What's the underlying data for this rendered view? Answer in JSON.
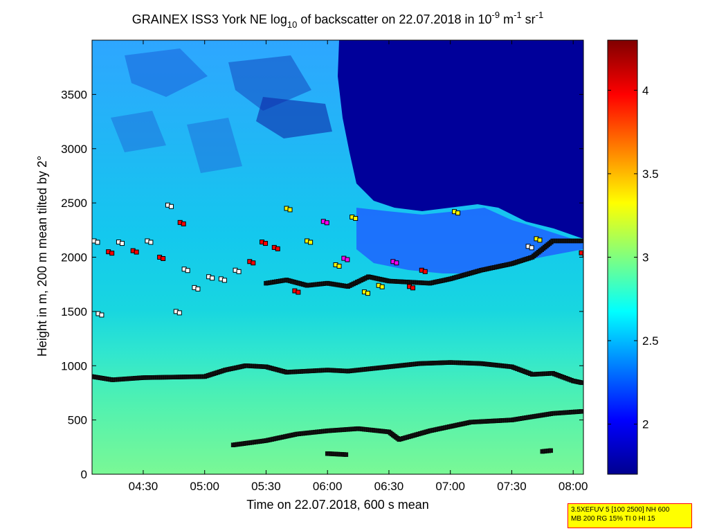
{
  "chart_data": {
    "type": "heatmap",
    "title": {
      "pre": "GRAINEX ISS3 York NE log",
      "sub": "10",
      "mid": " of backscatter on 22.07.2018 in 10",
      "sup1": "-9",
      "m": " m",
      "sup2": "-1",
      "sr": " sr",
      "sup3": "-1"
    },
    "xlabel": "Time on 22.07.2018, 600 s mean",
    "ylabel": "Height in m, 200 m mean tilted by 2°",
    "x_range": [
      "04:05",
      "08:05"
    ],
    "y_range": [
      0,
      4000
    ],
    "x_ticks": [
      "04:30",
      "05:00",
      "05:30",
      "06:00",
      "06:30",
      "07:00",
      "07:30",
      "08:00"
    ],
    "y_ticks": [
      "0",
      "500",
      "1000",
      "1500",
      "2000",
      "2500",
      "3000",
      "3500"
    ],
    "colorbar": {
      "range": [
        1.7,
        4.3
      ],
      "ticks": [
        "2",
        "2.5",
        "3",
        "3.5",
        "4"
      ]
    },
    "layers": [
      {
        "name": "boundary-layer-top",
        "points": [
          [
            "04:05",
            900
          ],
          [
            "04:15",
            870
          ],
          [
            "04:30",
            890
          ],
          [
            "05:00",
            900
          ],
          [
            "05:10",
            960
          ],
          [
            "05:20",
            1000
          ],
          [
            "05:30",
            990
          ],
          [
            "05:40",
            940
          ],
          [
            "06:00",
            960
          ],
          [
            "06:10",
            950
          ],
          [
            "06:30",
            990
          ],
          [
            "06:45",
            1020
          ],
          [
            "07:00",
            1030
          ],
          [
            "07:15",
            1020
          ],
          [
            "07:30",
            990
          ],
          [
            "07:40",
            920
          ],
          [
            "07:50",
            930
          ],
          [
            "08:00",
            860
          ],
          [
            "08:05",
            840
          ]
        ]
      },
      {
        "name": "lower-layer",
        "points": [
          [
            "05:14",
            270
          ],
          [
            "05:30",
            310
          ],
          [
            "05:45",
            370
          ],
          [
            "06:00",
            400
          ],
          [
            "06:15",
            420
          ],
          [
            "06:30",
            390
          ],
          [
            "06:35",
            320
          ],
          [
            "06:50",
            400
          ],
          [
            "07:10",
            480
          ],
          [
            "07:30",
            500
          ],
          [
            "07:50",
            560
          ],
          [
            "08:05",
            580
          ]
        ]
      },
      {
        "name": "upper-layer",
        "points": [
          [
            "05:30",
            1760
          ],
          [
            "05:40",
            1790
          ],
          [
            "05:50",
            1740
          ],
          [
            "06:00",
            1760
          ],
          [
            "06:10",
            1730
          ],
          [
            "06:20",
            1820
          ],
          [
            "06:30",
            1780
          ],
          [
            "06:40",
            1770
          ],
          [
            "06:50",
            1760
          ],
          [
            "07:00",
            1800
          ],
          [
            "07:15",
            1880
          ],
          [
            "07:30",
            1940
          ],
          [
            "07:40",
            2000
          ],
          [
            "07:50",
            2150
          ],
          [
            "08:05",
            2150
          ]
        ]
      },
      {
        "name": "short-layer-1",
        "points": [
          [
            "06:00",
            190
          ],
          [
            "06:10",
            180
          ]
        ]
      },
      {
        "name": "short-layer-2",
        "points": [
          [
            "07:45",
            210
          ],
          [
            "07:50",
            220
          ]
        ]
      }
    ],
    "scattered_markers": [
      [
        "04:06",
        2150,
        "#ffffff"
      ],
      [
        "04:08",
        1480,
        "#ffffff"
      ],
      [
        "04:13",
        2050,
        "#ff0000"
      ],
      [
        "04:18",
        2140,
        "#ffffff"
      ],
      [
        "04:25",
        2060,
        "#ff0000"
      ],
      [
        "04:32",
        2150,
        "#ffffff"
      ],
      [
        "04:38",
        2000,
        "#ff0000"
      ],
      [
        "04:42",
        2480,
        "#ffffff"
      ],
      [
        "04:46",
        1500,
        "#ffffff"
      ],
      [
        "04:48",
        2320,
        "#ff0000"
      ],
      [
        "04:50",
        1890,
        "#ffffff"
      ],
      [
        "04:55",
        1720,
        "#ffffff"
      ],
      [
        "05:02",
        1820,
        "#ffffff"
      ],
      [
        "05:08",
        1800,
        "#ffffff"
      ],
      [
        "05:15",
        1880,
        "#ffffff"
      ],
      [
        "05:22",
        1960,
        "#ff0000"
      ],
      [
        "05:28",
        2140,
        "#ff0000"
      ],
      [
        "05:34",
        2090,
        "#ff0000"
      ],
      [
        "05:40",
        2450,
        "#ffff00"
      ],
      [
        "05:44",
        1690,
        "#ff0000"
      ],
      [
        "05:50",
        2150,
        "#ffff00"
      ],
      [
        "05:58",
        2330,
        "#ff00ff"
      ],
      [
        "06:04",
        1930,
        "#ffff00"
      ],
      [
        "06:08",
        1990,
        "#ff00ff"
      ],
      [
        "06:12",
        2370,
        "#ffff00"
      ],
      [
        "06:18",
        1680,
        "#ffff00"
      ],
      [
        "06:25",
        1740,
        "#ffff00"
      ],
      [
        "06:32",
        1960,
        "#ff00ff"
      ],
      [
        "06:40",
        1730,
        "#ff0000"
      ],
      [
        "06:46",
        1880,
        "#ff0000"
      ],
      [
        "07:02",
        2420,
        "#ffff00"
      ],
      [
        "07:38",
        2100,
        "#ffffff"
      ],
      [
        "07:42",
        2170,
        "#ffff00"
      ],
      [
        "08:04",
        2040,
        "#ff0000"
      ]
    ]
  },
  "info_box": {
    "line1": "3.5XEFUV 5 [100 2500] NH 600",
    "line2": "MB 200 RG 15% TI 0 HI 15"
  }
}
